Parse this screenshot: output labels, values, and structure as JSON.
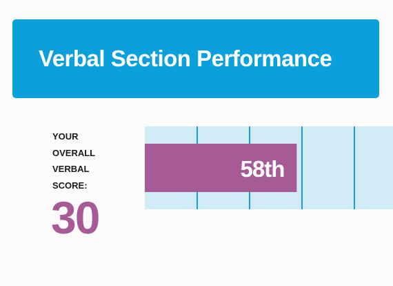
{
  "header": {
    "title": "Verbal Section Performance",
    "background": "#0aa0dc"
  },
  "score": {
    "label_lines": [
      "YOUR",
      "OVERALL",
      "VERBAL",
      "SCORE:"
    ],
    "value": "30",
    "color": "#a65a96"
  },
  "chart_data": {
    "type": "bar",
    "orientation": "horizontal",
    "categories": [
      ""
    ],
    "values": [
      58
    ],
    "data_labels": [
      "58th"
    ],
    "xlim": [
      0,
      100
    ],
    "grid": true,
    "bar_color": "#a65a96",
    "band_color": "#d2ecf7",
    "grid_color": "#1a9fc0",
    "title": "",
    "xlabel": "",
    "ylabel": ""
  }
}
